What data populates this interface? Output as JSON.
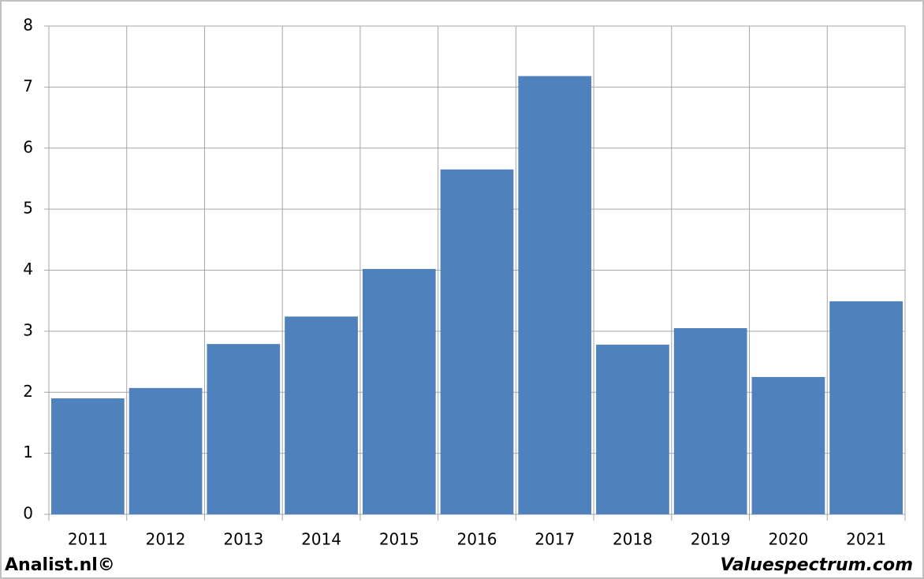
{
  "chart_data": {
    "type": "bar",
    "categories": [
      "2011",
      "2012",
      "2013",
      "2014",
      "2015",
      "2016",
      "2017",
      "2018",
      "2019",
      "2020",
      "2021"
    ],
    "values": [
      1.9,
      2.07,
      2.79,
      3.24,
      4.02,
      5.65,
      7.18,
      2.78,
      3.05,
      2.25,
      3.49
    ],
    "color": "#4f81bd",
    "ylim": [
      0,
      8
    ],
    "yticks": [
      0,
      1,
      2,
      3,
      4,
      5,
      6,
      7,
      8
    ],
    "grid": true
  },
  "footer": {
    "left": "Analist.nl©",
    "right": "Valuespectrum.com"
  }
}
